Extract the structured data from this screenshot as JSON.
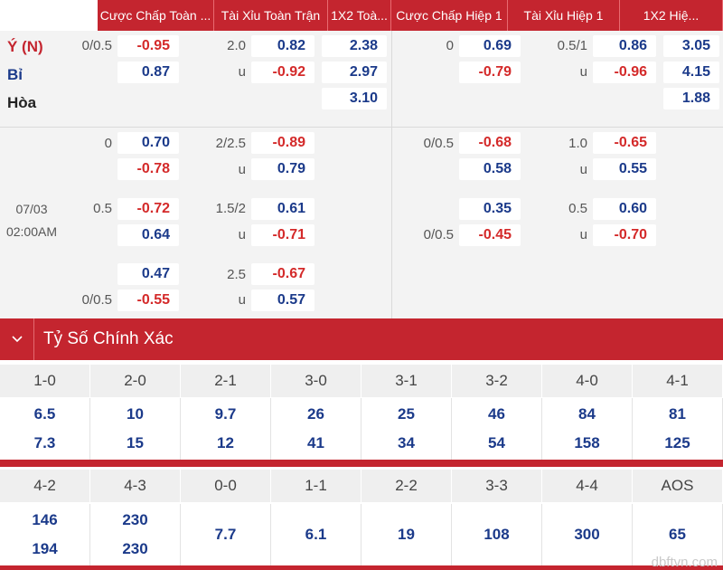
{
  "headers": [
    "Cược Chấp Toàn ...",
    "Tài Xỉu Toàn Trận",
    "1X2 Toà...",
    "Cược Chấp Hiệp 1",
    "Tài Xỉu Hiệp 1",
    "1X2 Hiệ..."
  ],
  "teams": {
    "home": "Ý (N)",
    "away": "Bỉ",
    "draw": "Hòa"
  },
  "match_time": {
    "date": "07/03",
    "time": "02:00AM"
  },
  "full": {
    "hdp_lines": [
      "0/0.5",
      "0",
      "0.5",
      "0/0.5"
    ],
    "hdp": [
      [
        "-0.95",
        "0.87"
      ],
      [
        "0.70",
        "-0.78"
      ],
      [
        "-0.72",
        "0.64"
      ],
      [
        "0.47",
        "-0.55"
      ]
    ],
    "ou_lines": [
      "2.0",
      "2/2.5",
      "1.5/2",
      "2.5"
    ],
    "under_label": "u",
    "ou": [
      [
        "0.82",
        "-0.92"
      ],
      [
        "-0.89",
        "0.79"
      ],
      [
        "0.61",
        "-0.71"
      ],
      [
        "-0.67",
        "0.57"
      ]
    ],
    "x12": [
      "2.38",
      "2.97",
      "3.10"
    ]
  },
  "half": {
    "hdp_lines": [
      "0",
      "0/0.5",
      "0/0.5"
    ],
    "hdp": [
      [
        "0.69",
        "-0.79"
      ],
      [
        "-0.68",
        "0.58"
      ],
      [
        "0.35",
        "-0.45"
      ]
    ],
    "ou_lines": [
      "0.5/1",
      "1.0",
      "0.5"
    ],
    "ou": [
      [
        "0.86",
        "-0.96"
      ],
      [
        "-0.65",
        "0.55"
      ],
      [
        "0.60",
        "-0.70"
      ]
    ],
    "x12": [
      "3.05",
      "4.15",
      "1.88"
    ]
  },
  "correct_score": {
    "title": "Tỷ Số Chính Xác",
    "toggle_icon": "chevron-down-icon",
    "row1_scores": [
      "1-0",
      "2-0",
      "2-1",
      "3-0",
      "3-1",
      "3-2",
      "4-0",
      "4-1"
    ],
    "row1_odds": [
      [
        "6.5",
        "7.3"
      ],
      [
        "10",
        "15"
      ],
      [
        "9.7",
        "12"
      ],
      [
        "26",
        "41"
      ],
      [
        "25",
        "34"
      ],
      [
        "46",
        "54"
      ],
      [
        "84",
        "158"
      ],
      [
        "81",
        "125"
      ]
    ],
    "row2_scores": [
      "4-2",
      "4-3",
      "0-0",
      "1-1",
      "2-2",
      "3-3",
      "4-4",
      "AOS"
    ],
    "row2_odds": [
      [
        "146",
        "194"
      ],
      [
        "230",
        "230"
      ],
      [
        "7.7"
      ],
      [
        "6.1"
      ],
      [
        "19"
      ],
      [
        "108"
      ],
      [
        "300"
      ],
      [
        "65"
      ]
    ]
  },
  "watermark": "dbftvn.com",
  "colors": {
    "accent": "#c4252f",
    "positive": "#1b3a8a",
    "negative": "#d42a2a"
  }
}
